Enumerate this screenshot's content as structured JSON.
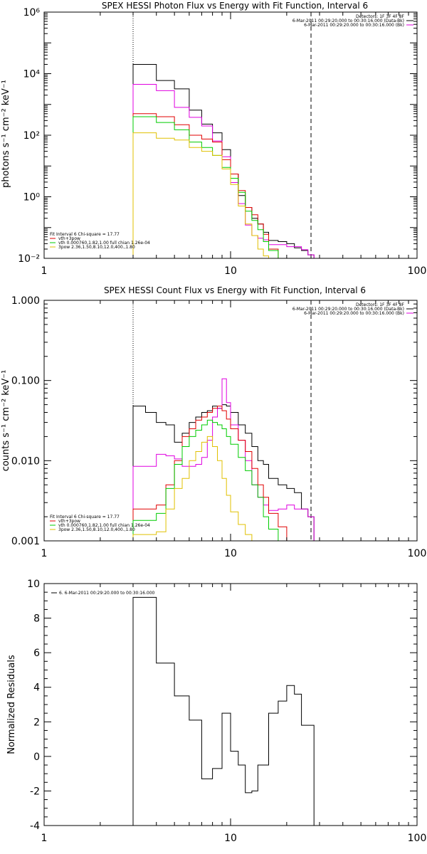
{
  "chart_data": [
    {
      "type": "line",
      "title": "SPEX HESSI Photon Flux vs Energy with Fit Function, Interval 6",
      "xlabel": "",
      "ylabel": "photons s⁻¹ cm⁻² keV⁻¹",
      "xscale": "log",
      "yscale": "log",
      "xlim": [
        1,
        100
      ],
      "ylim": [
        0.01,
        1000000
      ],
      "grid": false,
      "x_tick_labels": [
        "1",
        "10",
        "100"
      ],
      "y_tick_labels": [
        "10⁻²",
        "10⁰",
        "10²",
        "10⁴",
        "10⁶"
      ],
      "header_lines": [
        "Detectors: 1F 3F 4F 8F",
        "6-Mar-2011 00:29:20.000 to 00:30:16.000 (Data-Bk)",
        "6-Mar-2011 00:29:20.000 to 00:30:16.000 (Bk)"
      ],
      "header_colors": [
        "",
        "#000000",
        "#e000e0"
      ],
      "fit_legend": [
        "Fit Interval 6   Chi-square = 17.77",
        "vth+3pow",
        "vth 0.000760,1.82,1.00   full chian 1.26e-04",
        "3pow 2.36,1.50,8.10,12.0,400.,1.80"
      ],
      "fit_legend_colors": [
        "",
        "#e00000",
        "#00cc00",
        "#e0c000"
      ],
      "dotted_line_x": 3,
      "dashed_line_x": 27,
      "bin_edges": [
        3.0,
        3.5,
        4.0,
        4.5,
        5.0,
        5.5,
        6.0,
        6.5,
        7.0,
        7.5,
        8.0,
        8.5,
        9.0,
        9.5,
        10.0,
        11.0,
        12.0,
        13.0,
        14.0,
        15.0,
        16.0,
        18.0,
        20.0,
        22.0,
        24.0,
        26.0,
        28.0
      ],
      "series": [
        {
          "color": "#000000",
          "values": [
            20000,
            20000,
            6000,
            6000,
            3200,
            3200,
            650,
            650,
            230,
            230,
            120,
            120,
            34,
            34,
            5.5,
            1.1,
            0.45,
            0.2,
            0.13,
            0.07,
            0.038,
            0.035,
            0.03,
            0.022,
            0.018,
            0.013
          ]
        },
        {
          "color": "#e000e0",
          "values": [
            4500,
            4500,
            2800,
            2800,
            800,
            800,
            380,
            380,
            200,
            200,
            65,
            65,
            20,
            20,
            2.9,
            0.6,
            0.12,
            0.055,
            0.045,
            0.04,
            0.028,
            0.028,
            0.024,
            0.024,
            0.019,
            0.013
          ]
        },
        {
          "color": "#e00000",
          "values": [
            500,
            500,
            400,
            400,
            220,
            220,
            100,
            100,
            75,
            75,
            60,
            60,
            16,
            16,
            5.5,
            1.6,
            0.45,
            0.26,
            0.13,
            0.06,
            0.02,
            0.01,
            0.008,
            0.008,
            0.007,
            0.006
          ]
        },
        {
          "color": "#00cc00",
          "values": [
            400,
            400,
            260,
            260,
            150,
            150,
            60,
            60,
            40,
            40,
            22,
            22,
            9,
            9,
            4,
            1.4,
            0.34,
            0.17,
            0.085,
            0.035,
            0.018,
            0.009,
            0.008,
            0.007,
            0.006,
            0.006
          ]
        },
        {
          "color": "#e0c000",
          "values": [
            120,
            120,
            80,
            80,
            70,
            70,
            40,
            40,
            30,
            30,
            22,
            22,
            8,
            8,
            2.5,
            0.5,
            0.13,
            0.055,
            0.02,
            0.012,
            0.008,
            0.007,
            0.006,
            0.006,
            0.005,
            0.005
          ]
        }
      ]
    },
    {
      "type": "line",
      "title": "SPEX HESSI Count Flux vs Energy with Fit Function, Interval 6",
      "xlabel": "",
      "ylabel": "counts s⁻¹ cm⁻² keV⁻¹",
      "xscale": "log",
      "yscale": "log",
      "xlim": [
        1,
        100
      ],
      "ylim": [
        0.001,
        1.0
      ],
      "grid": false,
      "x_tick_labels": [
        "1",
        "10",
        "100"
      ],
      "y_tick_labels": [
        "0.001",
        "0.010",
        "0.100",
        "1.000"
      ],
      "header_lines": [
        "Detectors: 1F 3F 4F 8F",
        "6-Mar-2011 00:29:20.000 to 00:30:16.000 (Data-Bk)",
        "6-Mar-2011 00:29:20.000 to 00:30:16.000 (Bk)"
      ],
      "header_colors": [
        "",
        "#000000",
        "#e000e0"
      ],
      "fit_legend": [
        "Fit Interval 6   Chi-square = 17.77",
        "vth+3pow",
        "vth 0.000760,1.82,1.00   full chian 1.26e-04",
        "3pow 2.36,1.50,8.10,12.0,400.,1.80"
      ],
      "fit_legend_colors": [
        "",
        "#e00000",
        "#00cc00",
        "#e0c000"
      ],
      "dotted_line_x": 3,
      "dashed_line_x": 27,
      "bin_edges": [
        3.0,
        3.5,
        4.0,
        4.5,
        5.0,
        5.5,
        6.0,
        6.5,
        7.0,
        7.5,
        8.0,
        8.5,
        9.0,
        9.5,
        10.0,
        11.0,
        12.0,
        13.0,
        14.0,
        15.0,
        16.0,
        18.0,
        20.0,
        22.0,
        24.0,
        26.0,
        28.0
      ],
      "series": [
        {
          "color": "#000000",
          "values": [
            0.048,
            0.04,
            0.03,
            0.028,
            0.017,
            0.022,
            0.03,
            0.035,
            0.04,
            0.042,
            0.048,
            0.045,
            0.05,
            0.048,
            0.04,
            0.028,
            0.022,
            0.015,
            0.01,
            0.009,
            0.006,
            0.005,
            0.0045,
            0.004,
            0.0025,
            0.002
          ]
        },
        {
          "color": "#e000e0",
          "values": [
            0.0085,
            0.0085,
            0.012,
            0.0115,
            0.0105,
            0.0085,
            0.0085,
            0.009,
            0.011,
            0.018,
            0.035,
            0.045,
            0.105,
            0.053,
            0.028,
            0.018,
            0.01,
            0.005,
            0.0035,
            0.0028,
            0.0024,
            0.0025,
            0.0028,
            0.0025,
            0.0025,
            0.002
          ]
        },
        {
          "color": "#e00000",
          "values": [
            0.0025,
            0.0025,
            0.0028,
            0.005,
            0.01,
            0.02,
            0.025,
            0.032,
            0.035,
            0.04,
            0.045,
            0.048,
            0.042,
            0.033,
            0.025,
            0.018,
            0.013,
            0.008,
            0.005,
            0.0035,
            0.0022,
            0.0015,
            0.001,
            0.001,
            0.001,
            0.001
          ]
        },
        {
          "color": "#00cc00",
          "values": [
            0.0018,
            0.0018,
            0.0022,
            0.0045,
            0.009,
            0.015,
            0.02,
            0.024,
            0.028,
            0.032,
            0.03,
            0.028,
            0.025,
            0.02,
            0.016,
            0.011,
            0.0075,
            0.005,
            0.0035,
            0.002,
            0.0014,
            0.001,
            0.001,
            0.001,
            0.001,
            0.001
          ]
        },
        {
          "color": "#e0c000",
          "values": [
            0.0012,
            0.0012,
            0.0013,
            0.0025,
            0.0045,
            0.006,
            0.01,
            0.013,
            0.017,
            0.02,
            0.015,
            0.01,
            0.006,
            0.0037,
            0.0023,
            0.0016,
            0.0012,
            0.001,
            0.001,
            0.001,
            0.001,
            0.001,
            0.001,
            0.001,
            0.001,
            0.001
          ]
        }
      ]
    },
    {
      "type": "line",
      "title": "",
      "xlabel": "",
      "ylabel": "Normalized Residuals",
      "xscale": "log",
      "yscale": "linear",
      "xlim": [
        1,
        100
      ],
      "ylim": [
        -4,
        10
      ],
      "grid": false,
      "x_tick_labels": [
        "1",
        "10",
        "100"
      ],
      "y_tick_labels": [
        "-4",
        "-2",
        "0",
        "2",
        "4",
        "6",
        "8",
        "10"
      ],
      "legend": [
        "6. 6-Mar-2011 00:29:20.000 to 00:30:16.000"
      ],
      "bin_edges": [
        3.0,
        4.0,
        5.0,
        6.0,
        7.0,
        7.5,
        8.0,
        8.5,
        9.0,
        9.5,
        10.0,
        11.0,
        12.0,
        13.0,
        14.0,
        15.0,
        16.0,
        18.0,
        20.0,
        22.0,
        24.0,
        26.0,
        28.0
      ],
      "series": [
        {
          "color": "#000000",
          "values": [
            9.2,
            5.4,
            3.5,
            2.1,
            -1.3,
            -1.3,
            -0.7,
            -0.7,
            2.5,
            2.5,
            0.3,
            -0.5,
            -2.1,
            -2.0,
            -0.5,
            -0.5,
            2.5,
            3.2,
            4.1,
            3.6,
            1.8,
            1.8
          ]
        }
      ]
    }
  ]
}
